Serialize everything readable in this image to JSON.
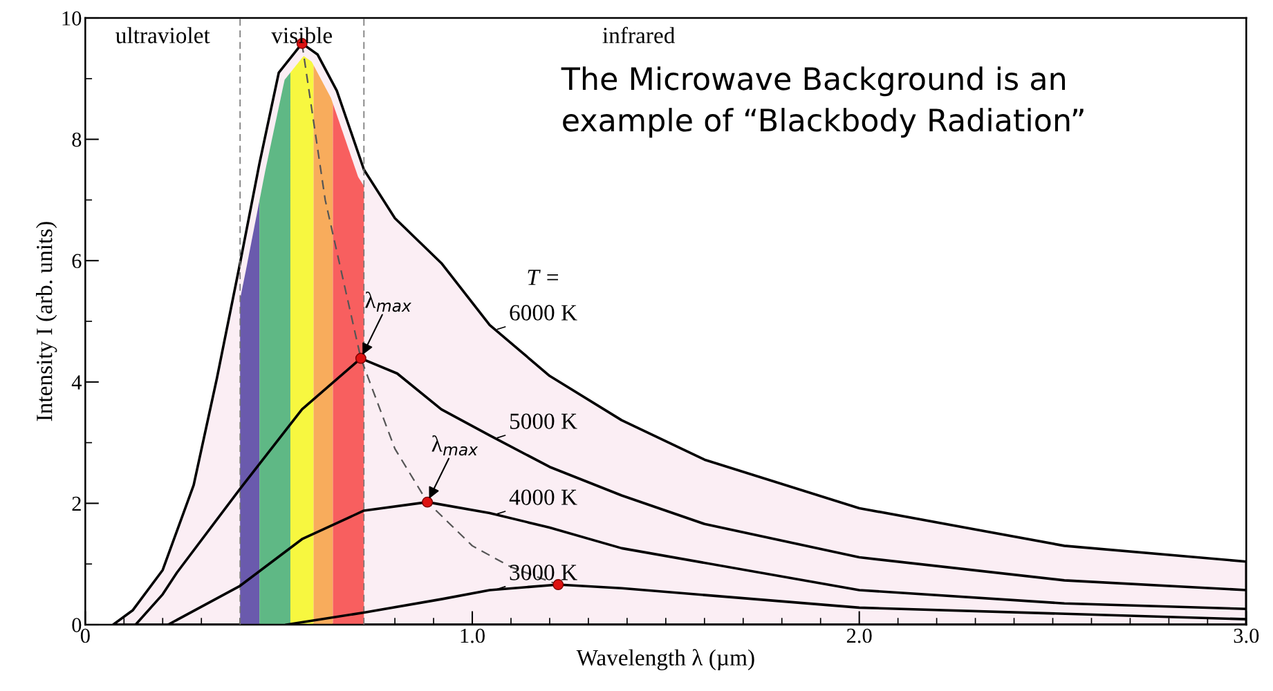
{
  "chart_data": {
    "type": "line",
    "xlabel": "Wavelength λ (µm)",
    "ylabel": "Intensity I (arb. units)",
    "xlim": [
      0,
      3.0
    ],
    "ylim": [
      0,
      10
    ],
    "xticks": [
      0,
      {
        "value": 1,
        "label": "1.0"
      },
      {
        "value": 2,
        "label": "2.0"
      },
      {
        "value": 3,
        "label": "3.0"
      }
    ],
    "yticks": [
      0,
      2,
      4,
      6,
      8,
      10
    ],
    "grid": false,
    "legend": "center",
    "series": [
      {
        "name": "6000 K",
        "type": "area",
        "color": "#fbeef4",
        "x": [
          0.072,
          0.123,
          0.2,
          0.28,
          0.34,
          0.4,
          0.45,
          0.5,
          0.56,
          0.6,
          0.65,
          0.72,
          0.8,
          0.92,
          1.045,
          1.2,
          1.386,
          1.6,
          2.0,
          2.53,
          3.0
        ],
        "values": [
          0,
          0.24,
          0.9,
          2.3,
          4.06,
          5.96,
          7.6,
          9.1,
          9.58,
          9.4,
          8.8,
          7.5,
          6.7,
          5.96,
          4.94,
          4.1,
          3.37,
          2.72,
          1.92,
          1.3,
          1.04
        ]
      },
      {
        "name": "5000 K",
        "color": "#000000",
        "x": [
          0.13,
          0.2,
          0.237,
          0.4,
          0.56,
          0.712,
          0.806,
          0.92,
          1.045,
          1.2,
          1.386,
          1.6,
          2.0,
          2.53,
          3.0
        ],
        "values": [
          0,
          0.5,
          0.86,
          2.24,
          3.55,
          4.39,
          4.14,
          3.55,
          3.12,
          2.6,
          2.13,
          1.66,
          1.11,
          0.73,
          0.57
        ]
      },
      {
        "name": "4000 K",
        "color": "#000000",
        "x": [
          0.214,
          0.4,
          0.56,
          0.72,
          0.884,
          1.045,
          1.2,
          1.386,
          2.0,
          2.53,
          3.0
        ],
        "values": [
          0,
          0.64,
          1.41,
          1.88,
          2.02,
          1.84,
          1.6,
          1.26,
          0.57,
          0.35,
          0.26
        ]
      },
      {
        "name": "3000 K",
        "color": "#000000",
        "x": [
          0.52,
          0.72,
          0.92,
          1.045,
          1.222,
          1.386,
          2.0,
          3.0
        ],
        "values": [
          0,
          0.2,
          0.42,
          0.57,
          0.66,
          0.6,
          0.28,
          0.09
        ]
      },
      {
        "type": "line",
        "line_style": "dashed",
        "color": "#555555",
        "x": [
          0.56,
          0.62,
          0.712,
          0.8,
          0.884,
          1.0,
          1.1,
          1.222
        ],
        "values": [
          9.58,
          7.0,
          4.39,
          2.9,
          2.02,
          1.3,
          0.95,
          0.66
        ]
      },
      {
        "type": "scatter",
        "marker": "circle",
        "color": "#dd1111",
        "x": [
          0.56,
          0.712,
          0.884,
          1.222
        ],
        "values": [
          9.58,
          4.39,
          2.02,
          0.66
        ]
      }
    ],
    "bands": [
      {
        "axis": "x",
        "from": 0.4,
        "to": 0.45,
        "color": "#6a5aad"
      },
      {
        "axis": "x",
        "from": 0.45,
        "to": 0.53,
        "color": "#5fb885"
      },
      {
        "axis": "x",
        "from": 0.53,
        "to": 0.59,
        "color": "#f7f740"
      },
      {
        "axis": "x",
        "from": 0.59,
        "to": 0.64,
        "color": "#f8ac5c"
      },
      {
        "axis": "x",
        "from": 0.64,
        "to": 0.72,
        "color": "#f85f5f"
      }
    ],
    "ref_lines": [
      {
        "axis": "x",
        "value": 0.4,
        "line_style": "dashed",
        "color": "#777777"
      },
      {
        "axis": "x",
        "value": 0.72,
        "line_style": "dashed",
        "color": "#777777"
      }
    ],
    "annotations": [
      "ultraviolet",
      "visible",
      "infrared",
      "T =",
      {
        "text": "λ$_{max}$",
        "x": 0.712,
        "y": 4.39
      },
      {
        "text": "λ$_{max}$",
        "x": 0.884,
        "y": 2.02
      },
      "The Microwave Background is an\nexample of “Blackbody Radiation”"
    ]
  }
}
